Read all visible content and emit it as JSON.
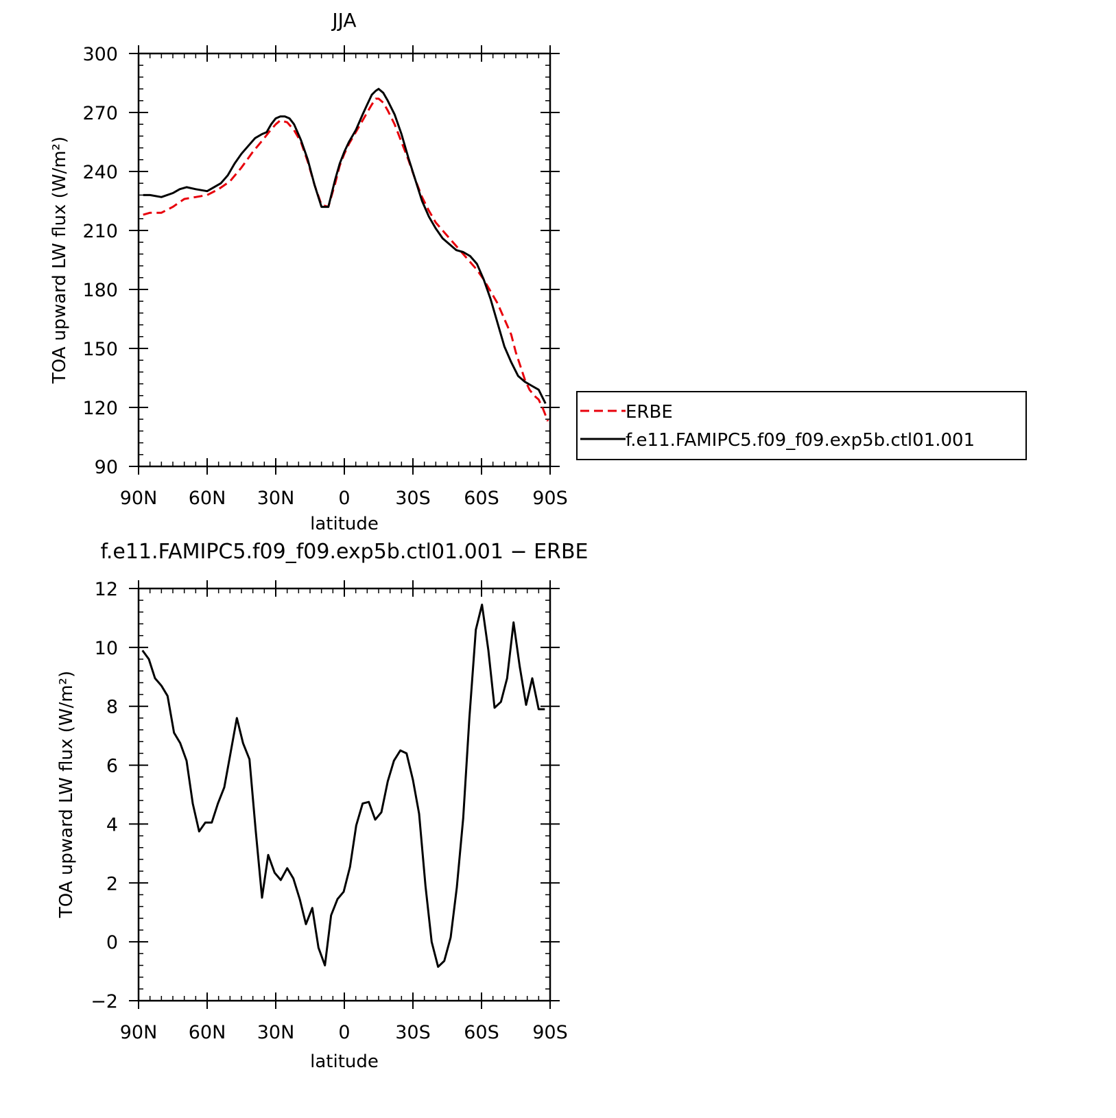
{
  "chart_data": [
    {
      "type": "line",
      "title": "JJA",
      "xlabel": "latitude",
      "ylabel": "TOA upward LW flux (W/m²)",
      "xlim": [
        90,
        -90
      ],
      "ylim": [
        90,
        300
      ],
      "xticks": [
        {
          "value": 90,
          "label": "90N"
        },
        {
          "value": 60,
          "label": "60N"
        },
        {
          "value": 30,
          "label": "30N"
        },
        {
          "value": 0,
          "label": "0"
        },
        {
          "value": -30,
          "label": "30S"
        },
        {
          "value": -60,
          "label": "60S"
        },
        {
          "value": -90,
          "label": "90S"
        }
      ],
      "yticks": [
        90,
        120,
        150,
        180,
        210,
        240,
        270,
        300
      ],
      "legend": {
        "placement": "right"
      },
      "series": [
        {
          "name": "ERBE",
          "color": "#e8000b",
          "dash": "dashed",
          "x": [
            88,
            85,
            80,
            75,
            70,
            65,
            60,
            55,
            50,
            45,
            40,
            35,
            33,
            30,
            28,
            25,
            22,
            19,
            16,
            13,
            10,
            7,
            4,
            2,
            0,
            -2,
            -5,
            -8,
            -10,
            -12,
            -13.7,
            -15,
            -17,
            -19,
            -22,
            -25,
            -28,
            -31,
            -34,
            -37,
            -40,
            -43,
            -46,
            -49,
            -52,
            -55,
            -58,
            -61,
            -64,
            -67,
            -70,
            -73,
            -75,
            -77,
            -79,
            -81,
            -83,
            -85,
            -87,
            -89
          ],
          "y": [
            218,
            219,
            219,
            222,
            226,
            227,
            228,
            231,
            235,
            242,
            250,
            257,
            260,
            264,
            266,
            265,
            261,
            255,
            245,
            233,
            223,
            222,
            234,
            243,
            249,
            254,
            260,
            266,
            270,
            274,
            277,
            277,
            275,
            271,
            264,
            255,
            246,
            236,
            227,
            220,
            214,
            210,
            206,
            202,
            198,
            194,
            190,
            185,
            179,
            173,
            165,
            157,
            148,
            141,
            134,
            129,
            126,
            124,
            119,
            113
          ]
        },
        {
          "name": "f.e11.FAMIPC5.f09_f09.exp5b.ctl01.001",
          "color": "#000000",
          "dash": "solid",
          "x": [
            88,
            85,
            80,
            75,
            72,
            69,
            65,
            60,
            57,
            54,
            51,
            48,
            45,
            42,
            39,
            36,
            34,
            32,
            30,
            28,
            26,
            24,
            22,
            19,
            16,
            13,
            10,
            7,
            4,
            2,
            0,
            -2,
            -5,
            -8,
            -10,
            -12,
            -13.7,
            -15,
            -17,
            -19,
            -22,
            -25,
            -28,
            -31,
            -34,
            -37,
            -40,
            -43,
            -46,
            -49,
            -52,
            -55,
            -58,
            -61,
            -64,
            -67,
            -70,
            -73,
            -76,
            -79,
            -82,
            -85,
            -88
          ],
          "y": [
            228,
            228,
            227,
            229,
            231,
            232,
            231,
            230,
            232,
            234,
            238,
            244,
            249,
            253,
            257,
            259,
            260,
            264,
            267,
            268,
            268,
            267,
            264,
            256,
            246,
            233,
            222,
            222,
            236,
            244,
            250,
            255,
            261,
            269,
            274,
            279,
            281,
            282,
            280,
            276,
            269,
            259,
            247,
            236,
            225,
            217,
            211,
            206,
            203,
            200,
            199,
            197,
            193,
            185,
            175,
            163,
            151,
            143,
            136,
            133,
            131,
            129,
            122
          ]
        }
      ]
    },
    {
      "type": "line",
      "title": "f.e11.FAMIPC5.f09_f09.exp5b.ctl01.001  −  ERBE",
      "xlabel": "latitude",
      "ylabel": "TOA upward LW flux (W/m²)",
      "xlim": [
        90,
        -90
      ],
      "ylim": [
        -2,
        12
      ],
      "xticks": [
        {
          "value": 90,
          "label": "90N"
        },
        {
          "value": 60,
          "label": "60N"
        },
        {
          "value": 30,
          "label": "30N"
        },
        {
          "value": 0,
          "label": "0"
        },
        {
          "value": -30,
          "label": "30S"
        },
        {
          "value": -60,
          "label": "60S"
        },
        {
          "value": -90,
          "label": "90S"
        }
      ],
      "yticks": [
        -2,
        0,
        2,
        4,
        6,
        8,
        10,
        12
      ],
      "series": [
        {
          "color": "#000000",
          "dash": "solid",
          "x": [
            88.3,
            85.5,
            82.8,
            80,
            77.3,
            74.5,
            71.8,
            69,
            66.3,
            63.5,
            60.8,
            58,
            55.3,
            52.5,
            49.8,
            47,
            44.3,
            41.5,
            38.8,
            36,
            33.3,
            30.5,
            27.8,
            25,
            22.3,
            19.5,
            16.8,
            14,
            11.3,
            8.5,
            5.8,
            3,
            0.3,
            -2.5,
            -5.2,
            -8,
            -10.7,
            -13.5,
            -16.2,
            -19,
            -21.7,
            -24.5,
            -27.2,
            -30,
            -32.7,
            -35.5,
            -38.2,
            -41,
            -43.7,
            -46.5,
            -49.2,
            -52,
            -54.7,
            -57.5,
            -60.2,
            -63,
            -65.7,
            -68.5,
            -71.2,
            -74,
            -76.7,
            -79.5,
            -82.2,
            -85,
            -87.7
          ],
          "y": [
            9.9,
            9.6,
            8.95,
            8.7,
            8.35,
            7.1,
            6.75,
            6.15,
            4.7,
            3.75,
            4.05,
            4.05,
            4.7,
            5.25,
            6.4,
            7.6,
            6.75,
            6.2,
            3.8,
            1.5,
            2.95,
            2.35,
            2.1,
            2.5,
            2.15,
            1.45,
            0.6,
            1.15,
            -0.2,
            -0.8,
            0.9,
            1.45,
            1.7,
            2.55,
            3.95,
            4.7,
            4.75,
            4.15,
            4.4,
            5.45,
            6.15,
            6.5,
            6.4,
            5.5,
            4.35,
            1.9,
            0.0,
            -0.85,
            -0.65,
            0.15,
            1.85,
            4.2,
            7.6,
            10.6,
            11.45,
            9.9,
            7.95,
            8.15,
            8.95,
            10.85,
            9.35,
            8.05,
            8.95,
            7.9,
            7.9
          ]
        }
      ]
    }
  ]
}
